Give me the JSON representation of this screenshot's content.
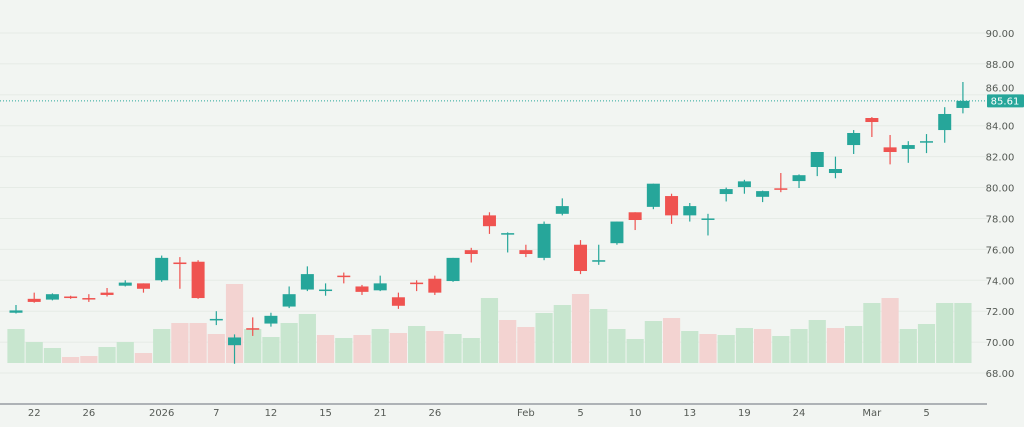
{
  "chart_data": {
    "type": "candlestick",
    "title": "",
    "xlabel": "",
    "ylabel": "",
    "ylim": [
      66.5,
      92
    ],
    "grid": true,
    "y_ticks": [
      "68.00",
      "70.00",
      "72.00",
      "74.00",
      "76.00",
      "78.00",
      "80.00",
      "82.00",
      "84.00",
      "86.00",
      "88.00",
      "90.00"
    ],
    "x_tick_labels": [
      {
        "index": 1,
        "label": "22"
      },
      {
        "index": 4,
        "label": "26"
      },
      {
        "index": 8,
        "label": "2026"
      },
      {
        "index": 11,
        "label": "7"
      },
      {
        "index": 14,
        "label": "12"
      },
      {
        "index": 17,
        "label": "15"
      },
      {
        "index": 20,
        "label": "21"
      },
      {
        "index": 23,
        "label": "26"
      },
      {
        "index": 28,
        "label": "Feb"
      },
      {
        "index": 31,
        "label": "5"
      },
      {
        "index": 34,
        "label": "10"
      },
      {
        "index": 37,
        "label": "13"
      },
      {
        "index": 40,
        "label": "19"
      },
      {
        "index": 43,
        "label": "24"
      },
      {
        "index": 47,
        "label": "Mar"
      },
      {
        "index": 50,
        "label": "5"
      }
    ],
    "last_price": 85.61,
    "last_price_label": "85.61",
    "colors": {
      "up": "#26a69a",
      "down": "#ef5350",
      "volume_up": "#c8e6cf",
      "volume_down": "#f3d3d1",
      "background": "#f2f5f2"
    },
    "dates": [
      "2025-12-19",
      "2025-12-22",
      "2025-12-23",
      "2025-12-24",
      "2025-12-26",
      "2025-12-29",
      "2025-12-30",
      "2025-12-31",
      "2026-01-02",
      "2026-01-05",
      "2026-01-06",
      "2026-01-07",
      "2026-01-08",
      "2026-01-09",
      "2026-01-12",
      "2026-01-13",
      "2026-01-14",
      "2026-01-15",
      "2026-01-16",
      "2026-01-20",
      "2026-01-21",
      "2026-01-22",
      "2026-01-23",
      "2026-01-26",
      "2026-01-27",
      "2026-01-28",
      "2026-01-29",
      "2026-01-30",
      "2026-02-02",
      "2026-02-03",
      "2026-02-04",
      "2026-02-05",
      "2026-02-06",
      "2026-02-09",
      "2026-02-10",
      "2026-02-11",
      "2026-02-12",
      "2026-02-13",
      "2026-02-17",
      "2026-02-18",
      "2026-02-19",
      "2026-02-20",
      "2026-02-23",
      "2026-02-24",
      "2026-02-25",
      "2026-02-26",
      "2026-02-27",
      "2026-03-02",
      "2026-03-03",
      "2026-03-04",
      "2026-03-05",
      "2026-03-06",
      "2026-03-09"
    ],
    "ohlc": [
      [
        71.9,
        72.4,
        71.85,
        72.05
      ],
      [
        72.8,
        73.2,
        72.55,
        72.6
      ],
      [
        72.75,
        73.15,
        72.7,
        73.1
      ],
      [
        72.95,
        73.0,
        72.8,
        72.85
      ],
      [
        72.85,
        73.1,
        72.6,
        72.8
      ],
      [
        73.2,
        73.5,
        72.95,
        73.05
      ],
      [
        73.65,
        74.0,
        73.6,
        73.85
      ],
      [
        73.8,
        73.8,
        73.2,
        73.45
      ],
      [
        74.0,
        75.6,
        73.9,
        75.45
      ],
      [
        75.15,
        75.5,
        73.45,
        75.05
      ],
      [
        75.2,
        75.3,
        72.8,
        72.85
      ],
      [
        71.45,
        72.0,
        71.1,
        71.5
      ],
      [
        69.8,
        70.5,
        68.6,
        70.3
      ],
      [
        70.9,
        71.6,
        70.4,
        70.8
      ],
      [
        71.2,
        71.9,
        71.0,
        71.7
      ],
      [
        72.3,
        73.6,
        72.2,
        73.1
      ],
      [
        73.4,
        74.9,
        73.3,
        74.4
      ],
      [
        73.35,
        73.8,
        73.0,
        73.4
      ],
      [
        74.3,
        74.5,
        73.8,
        74.25
      ],
      [
        73.6,
        73.7,
        73.05,
        73.25
      ],
      [
        73.35,
        74.3,
        73.3,
        73.8
      ],
      [
        72.9,
        73.2,
        72.15,
        72.35
      ],
      [
        73.85,
        74.0,
        73.3,
        73.75
      ],
      [
        74.1,
        74.3,
        73.05,
        73.2
      ],
      [
        73.95,
        75.45,
        73.9,
        75.45
      ],
      [
        75.95,
        76.1,
        75.15,
        75.7
      ],
      [
        78.2,
        78.4,
        77.0,
        77.5
      ],
      [
        77.0,
        77.1,
        75.8,
        77.05
      ],
      [
        75.95,
        76.3,
        75.5,
        75.7
      ],
      [
        75.45,
        77.8,
        75.3,
        77.65
      ],
      [
        78.3,
        79.3,
        78.2,
        78.8
      ],
      [
        76.3,
        76.6,
        74.4,
        74.6
      ],
      [
        75.2,
        76.3,
        75.0,
        75.3
      ],
      [
        76.4,
        77.8,
        76.3,
        77.8
      ],
      [
        78.4,
        78.4,
        77.25,
        77.9
      ],
      [
        78.75,
        80.25,
        78.6,
        80.25
      ],
      [
        79.45,
        79.6,
        77.65,
        78.2
      ],
      [
        78.2,
        79.0,
        77.8,
        78.8
      ],
      [
        77.95,
        78.3,
        76.9,
        78.0
      ],
      [
        79.58,
        80.0,
        79.1,
        79.9
      ],
      [
        80.03,
        80.5,
        79.6,
        80.4
      ],
      [
        79.4,
        79.8,
        79.06,
        79.77
      ],
      [
        79.95,
        80.94,
        79.7,
        79.9
      ],
      [
        80.42,
        80.85,
        79.97,
        80.8
      ],
      [
        81.33,
        82.3,
        80.74,
        82.3
      ],
      [
        80.94,
        82.0,
        80.6,
        81.2
      ],
      [
        82.75,
        83.72,
        82.17,
        83.53
      ],
      [
        84.5,
        84.56,
        83.27,
        84.24
      ],
      [
        82.6,
        83.4,
        81.5,
        82.3
      ],
      [
        82.5,
        83.0,
        81.6,
        82.75
      ],
      [
        82.95,
        83.46,
        82.23,
        83.0
      ],
      [
        83.72,
        85.2,
        82.9,
        84.76
      ],
      [
        85.15,
        86.83,
        84.8,
        85.61
      ]
    ],
    "volume_relative": [
      34,
      21,
      15,
      6,
      7,
      16,
      21,
      10,
      34,
      40,
      40,
      29,
      79,
      34,
      26,
      40,
      49,
      28,
      25,
      28,
      34,
      30,
      37,
      32,
      29,
      25,
      65,
      43,
      36,
      50,
      58,
      69,
      54,
      34,
      24,
      42,
      45,
      32,
      29,
      28,
      35,
      34,
      27,
      34,
      43,
      35,
      37,
      60,
      65,
      34,
      39,
      60,
      60
    ]
  }
}
